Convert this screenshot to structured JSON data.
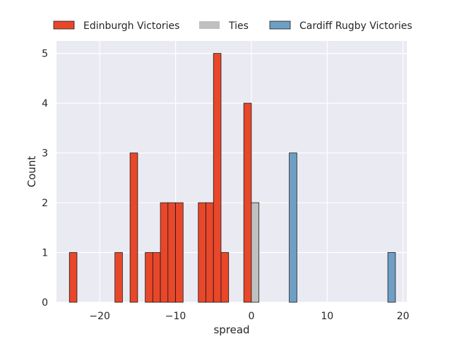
{
  "chart_data": {
    "type": "bar",
    "xlabel": "spread",
    "ylabel": "Count",
    "xlim": [
      -25.7,
      20.5
    ],
    "ylim": [
      0,
      5.25
    ],
    "bin_width": 1,
    "x_ticks": [
      -20,
      -10,
      0,
      10,
      20
    ],
    "x_tick_labels": [
      "−20",
      "−10",
      "0",
      "10",
      "20"
    ],
    "y_ticks": [
      0,
      1,
      2,
      3,
      4,
      5
    ],
    "grid": true,
    "legend_position": "top",
    "series": [
      {
        "name": "Edinburgh Victories",
        "color": "#e8472a",
        "bins": [
          {
            "x": -23.5,
            "count": 1
          },
          {
            "x": -17.5,
            "count": 1
          },
          {
            "x": -15.5,
            "count": 3
          },
          {
            "x": -13.5,
            "count": 1
          },
          {
            "x": -12.5,
            "count": 1
          },
          {
            "x": -11.5,
            "count": 2
          },
          {
            "x": -10.5,
            "count": 2
          },
          {
            "x": -9.5,
            "count": 2
          },
          {
            "x": -6.5,
            "count": 2
          },
          {
            "x": -5.5,
            "count": 2
          },
          {
            "x": -4.5,
            "count": 5
          },
          {
            "x": -3.5,
            "count": 1
          },
          {
            "x": -0.5,
            "count": 4
          }
        ]
      },
      {
        "name": "Ties",
        "color": "#c0c0c0",
        "bins": [
          {
            "x": 0.5,
            "count": 2
          }
        ]
      },
      {
        "name": "Cardiff Rugby Victories",
        "color": "#6e9fc4",
        "bins": [
          {
            "x": 5.5,
            "count": 3
          },
          {
            "x": 18.5,
            "count": 1
          }
        ]
      }
    ]
  }
}
